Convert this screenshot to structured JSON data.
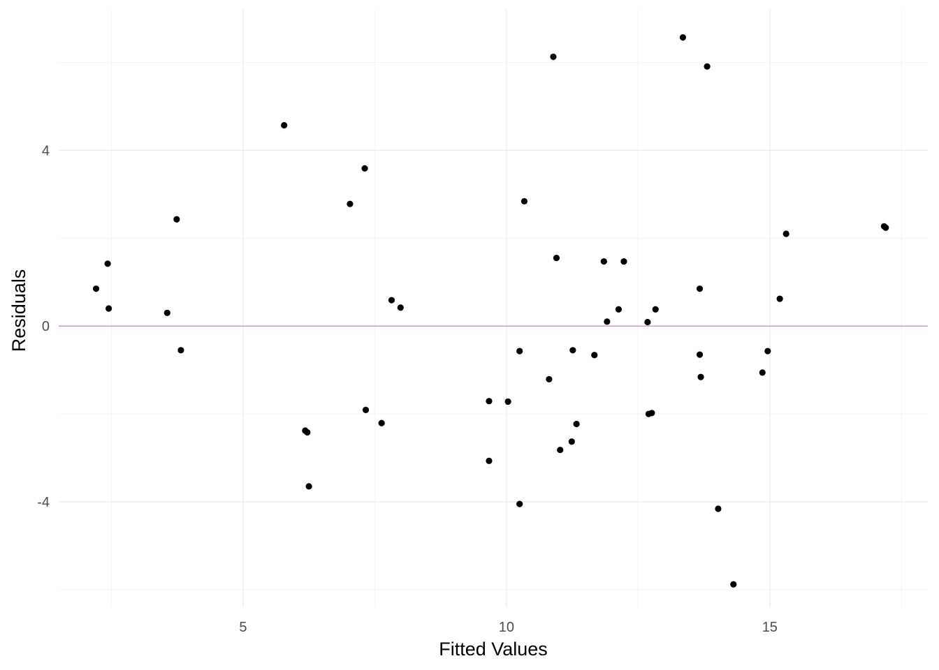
{
  "chart_data": {
    "type": "scatter",
    "title": "",
    "xlabel": "Fitted Values",
    "ylabel": "Residuals",
    "xlim": [
      1.5,
      18.0
    ],
    "ylim": [
      -6.4,
      7.2
    ],
    "x_major_ticks": [
      5,
      10,
      15
    ],
    "x_tick_labels": [
      "5",
      "10",
      "15"
    ],
    "x_minor_ticks": [
      2.5,
      7.5,
      12.5,
      17.5
    ],
    "y_major_ticks": [
      -4,
      0,
      4
    ],
    "y_tick_labels": [
      "-4",
      "0",
      "4"
    ],
    "y_minor_ticks": [
      -6,
      -2,
      2,
      6
    ],
    "grid": true,
    "reference_line": {
      "y": 0,
      "color": "#dd99dd"
    },
    "point_color": "#000000",
    "points": [
      {
        "x": 2.21,
        "y": 0.85
      },
      {
        "x": 2.43,
        "y": 1.42
      },
      {
        "x": 2.45,
        "y": 0.4
      },
      {
        "x": 3.56,
        "y": 0.3
      },
      {
        "x": 3.74,
        "y": 2.43
      },
      {
        "x": 3.82,
        "y": -0.55
      },
      {
        "x": 5.78,
        "y": 4.57
      },
      {
        "x": 6.18,
        "y": -2.38
      },
      {
        "x": 6.22,
        "y": -2.42
      },
      {
        "x": 6.25,
        "y": -3.65
      },
      {
        "x": 7.03,
        "y": 2.78
      },
      {
        "x": 7.31,
        "y": 3.59
      },
      {
        "x": 7.33,
        "y": -1.91
      },
      {
        "x": 7.63,
        "y": -2.21
      },
      {
        "x": 7.82,
        "y": 0.59
      },
      {
        "x": 7.99,
        "y": 0.42
      },
      {
        "x": 9.67,
        "y": -1.71
      },
      {
        "x": 9.67,
        "y": -3.07
      },
      {
        "x": 10.03,
        "y": -1.72
      },
      {
        "x": 10.25,
        "y": -0.57
      },
      {
        "x": 10.25,
        "y": -4.05
      },
      {
        "x": 10.34,
        "y": 2.84
      },
      {
        "x": 10.81,
        "y": -1.21
      },
      {
        "x": 10.89,
        "y": 6.13
      },
      {
        "x": 10.95,
        "y": 1.55
      },
      {
        "x": 11.02,
        "y": -2.82
      },
      {
        "x": 11.24,
        "y": -2.63
      },
      {
        "x": 11.26,
        "y": -0.55
      },
      {
        "x": 11.33,
        "y": -2.23
      },
      {
        "x": 11.67,
        "y": -0.66
      },
      {
        "x": 11.85,
        "y": 1.47
      },
      {
        "x": 11.91,
        "y": 0.1
      },
      {
        "x": 12.13,
        "y": 0.38
      },
      {
        "x": 12.23,
        "y": 1.47
      },
      {
        "x": 12.68,
        "y": 0.09
      },
      {
        "x": 12.7,
        "y": -2.0
      },
      {
        "x": 12.76,
        "y": -1.98
      },
      {
        "x": 12.83,
        "y": 0.38
      },
      {
        "x": 13.35,
        "y": 6.57
      },
      {
        "x": 13.67,
        "y": 0.85
      },
      {
        "x": 13.67,
        "y": -0.65
      },
      {
        "x": 13.69,
        "y": -1.16
      },
      {
        "x": 13.81,
        "y": 5.91
      },
      {
        "x": 14.02,
        "y": -4.16
      },
      {
        "x": 14.31,
        "y": -5.88
      },
      {
        "x": 14.86,
        "y": -1.06
      },
      {
        "x": 14.96,
        "y": -0.57
      },
      {
        "x": 15.19,
        "y": 0.62
      },
      {
        "x": 15.31,
        "y": 2.1
      },
      {
        "x": 17.17,
        "y": 2.27
      },
      {
        "x": 17.2,
        "y": 2.24
      }
    ]
  }
}
